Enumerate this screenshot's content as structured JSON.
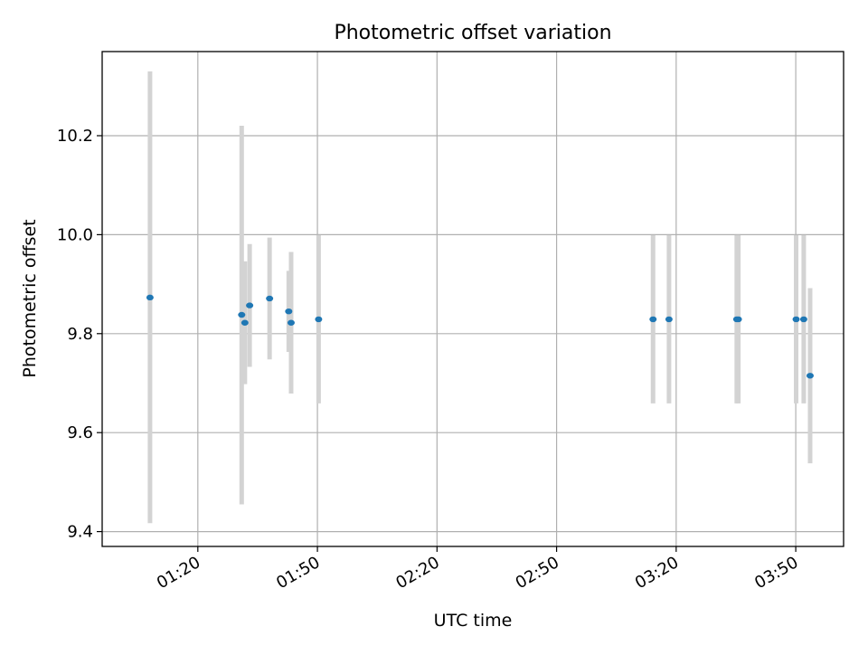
{
  "chart_data": {
    "type": "scatter",
    "title": "Photometric offset variation",
    "xlabel": "UTC time",
    "ylabel": "Photometric offset",
    "x_tick_labels": [
      "01:20",
      "01:50",
      "02:20",
      "02:50",
      "03:20",
      "03:50"
    ],
    "x_ticks": [
      "01:20",
      "01:50",
      "02:20",
      "02:50",
      "03:20",
      "03:50"
    ],
    "y_tick_labels": [
      "9.4",
      "9.6",
      "9.8",
      "10.0",
      "10.2"
    ],
    "y_ticks": [
      9.4,
      9.6,
      9.8,
      10.0,
      10.2
    ],
    "xlim": [
      "00:56",
      "04:02"
    ],
    "ylim": [
      9.37,
      10.37
    ],
    "grid": true,
    "colors": {
      "point": "#1f77b4",
      "errorbar": "#d3d3d3",
      "grid": "#b0b0b0"
    },
    "points": [
      {
        "x": "01:08",
        "y": 9.873,
        "ylow": 9.417,
        "yhigh": 10.33
      },
      {
        "x": "01:31",
        "y": 9.838,
        "ylow": 9.455,
        "yhigh": 10.22
      },
      {
        "x": "01:31.8",
        "y": 9.822,
        "ylow": 9.698,
        "yhigh": 9.946
      },
      {
        "x": "01:33",
        "y": 9.857,
        "ylow": 9.733,
        "yhigh": 9.981
      },
      {
        "x": "01:38",
        "y": 9.871,
        "ylow": 9.748,
        "yhigh": 9.994
      },
      {
        "x": "01:42.8",
        "y": 9.845,
        "ylow": 9.763,
        "yhigh": 9.927
      },
      {
        "x": "01:43.4",
        "y": 9.822,
        "ylow": 9.679,
        "yhigh": 9.965
      },
      {
        "x": "01:50.3",
        "y": 9.829,
        "ylow": 9.659,
        "yhigh": 9.999
      },
      {
        "x": "03:14.2",
        "y": 9.829,
        "ylow": 9.659,
        "yhigh": 9.999
      },
      {
        "x": "03:18.2",
        "y": 9.829,
        "ylow": 9.659,
        "yhigh": 9.999
      },
      {
        "x": "03:35.2",
        "y": 9.829,
        "ylow": 9.659,
        "yhigh": 9.999
      },
      {
        "x": "03:35.6",
        "y": 9.829,
        "ylow": 9.659,
        "yhigh": 9.999
      },
      {
        "x": "03:50.1",
        "y": 9.829,
        "ylow": 9.659,
        "yhigh": 9.999
      },
      {
        "x": "03:52",
        "y": 9.829,
        "ylow": 9.659,
        "yhigh": 9.999
      },
      {
        "x": "03:53.6",
        "y": 9.715,
        "ylow": 9.538,
        "yhigh": 9.892
      }
    ]
  }
}
